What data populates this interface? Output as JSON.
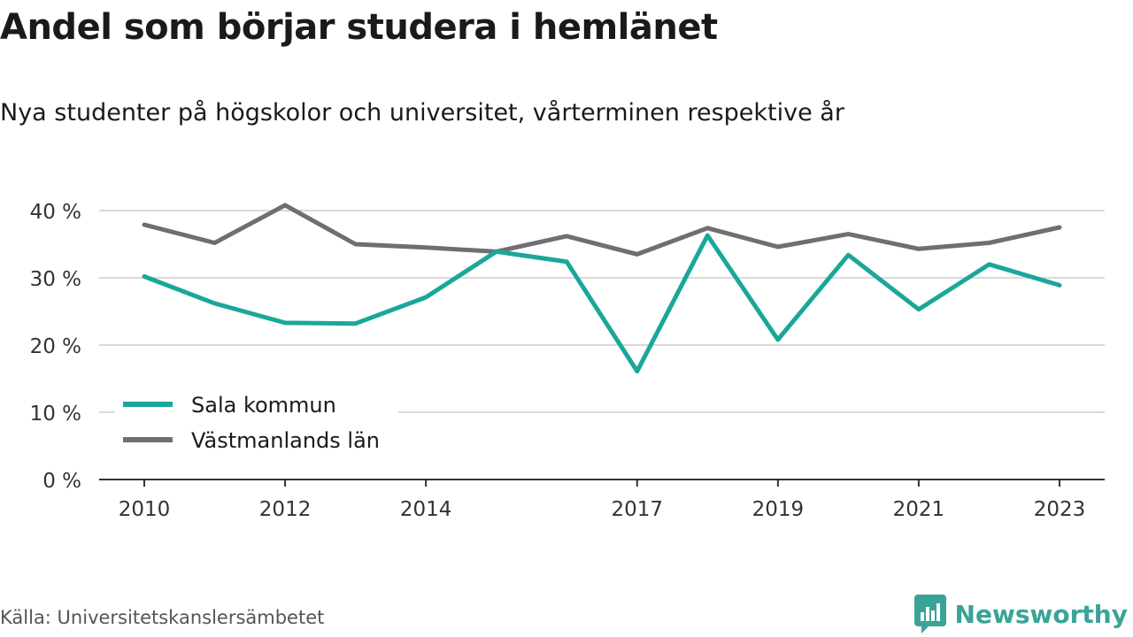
{
  "title": "Andel som börjar studera i hemlänet",
  "subtitle": "Nya studenter på högskolor och universitet, vårterminen respektive år",
  "source": "Källa: Universitetskanslersämbetet",
  "brand": "Newsworthy",
  "colors": {
    "series1": "#1aa79a",
    "series2": "#6e6e73",
    "grid": "#d9d9d9",
    "axis": "#333333",
    "brand": "#3aa398"
  },
  "chart_data": {
    "type": "line",
    "x": [
      2010,
      2011,
      2012,
      2013,
      2014,
      2015,
      2016,
      2017,
      2018,
      2019,
      2020,
      2021,
      2022,
      2023
    ],
    "x_tick_labels": [
      "2010",
      "2012",
      "2014",
      "2017",
      "2019",
      "2021",
      "2023"
    ],
    "y_tick_labels": [
      "0 %",
      "10 %",
      "20 %",
      "30 %",
      "40 %"
    ],
    "ylim": [
      0,
      40
    ],
    "grid": true,
    "legend_position": "bottom-left",
    "series": [
      {
        "name": "Sala kommun",
        "values": [
          30.2,
          26.2,
          23.3,
          23.2,
          27.1,
          33.9,
          32.4,
          16.1,
          36.3,
          20.8,
          33.4,
          25.3,
          32.0,
          28.9
        ]
      },
      {
        "name": "Västmanlands län",
        "values": [
          37.9,
          35.2,
          40.8,
          35.0,
          34.5,
          33.9,
          36.2,
          33.5,
          37.4,
          34.6,
          36.5,
          34.3,
          35.2,
          37.5
        ]
      }
    ]
  }
}
